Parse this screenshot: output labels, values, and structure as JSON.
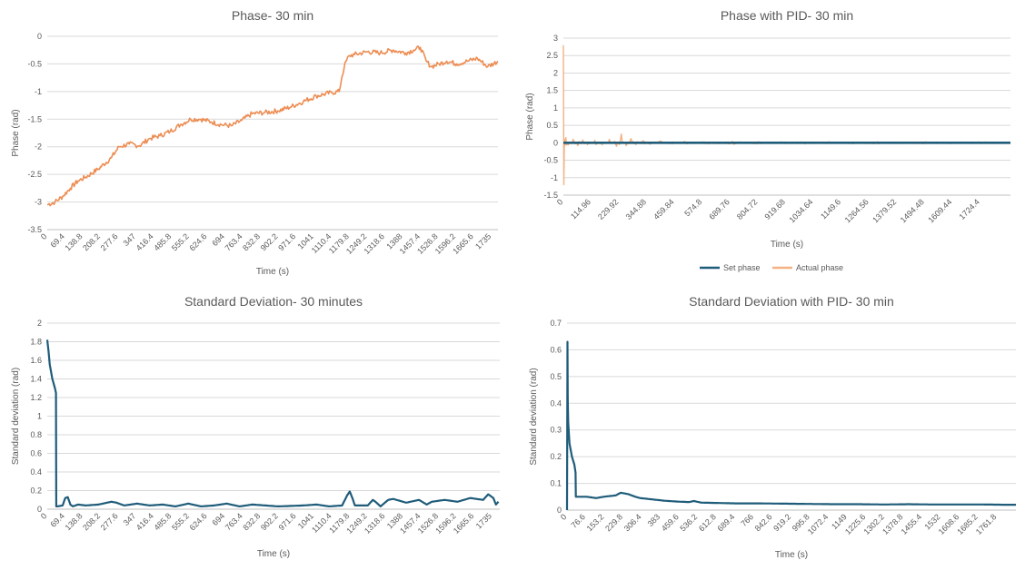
{
  "colors": {
    "orange": "#ED8D53",
    "orange_light": "#F4B183",
    "teal": "#1F5C7A",
    "grid": "#D9D9D9",
    "axis": "#BFBFBF",
    "text": "#595959"
  },
  "chart_data": [
    {
      "type": "line",
      "title": "Phase- 30 min",
      "xlabel": "Time (s)",
      "ylabel": "Phase (rad)",
      "ylim": [
        -3.5,
        0
      ],
      "yticks": [
        "0",
        "-0.5",
        "-1",
        "-1.5",
        "-2",
        "-2.5",
        "-3",
        "-3.5"
      ],
      "xticks": [
        "0",
        "69.4",
        "138.8",
        "208.2",
        "277.6",
        "347",
        "416.4",
        "485.8",
        "555.2",
        "624.6",
        "694",
        "763.4",
        "832.8",
        "902.2",
        "971.6",
        "1041",
        "1110.4",
        "1179.8",
        "1249.2",
        "1318.6",
        "1388",
        "1457.4",
        "1526.8",
        "1596.2",
        "1665.6",
        "1735"
      ],
      "grid": true,
      "series": [
        {
          "color": "#ED8D53",
          "x": [
            0,
            30,
            60,
            90,
            120,
            150,
            200,
            250,
            280,
            320,
            360,
            400,
            440,
            480,
            520,
            560,
            600,
            640,
            680,
            720,
            760,
            800,
            850,
            900,
            950,
            1000,
            1050,
            1080,
            1110,
            1140,
            1150,
            1160,
            1170,
            1180,
            1200,
            1250,
            1300,
            1350,
            1400,
            1430,
            1457,
            1480,
            1500,
            1530,
            1560,
            1600,
            1640,
            1680,
            1720,
            1760
          ],
          "y": [
            -3.05,
            -3.0,
            -2.9,
            -2.75,
            -2.62,
            -2.55,
            -2.4,
            -2.2,
            -2.0,
            -1.95,
            -1.98,
            -1.85,
            -1.8,
            -1.72,
            -1.6,
            -1.5,
            -1.5,
            -1.55,
            -1.6,
            -1.62,
            -1.52,
            -1.4,
            -1.38,
            -1.35,
            -1.28,
            -1.18,
            -1.08,
            -1.05,
            -1.02,
            -1.0,
            -0.75,
            -0.55,
            -0.42,
            -0.35,
            -0.33,
            -0.28,
            -0.3,
            -0.25,
            -0.3,
            -0.25,
            -0.2,
            -0.45,
            -0.55,
            -0.5,
            -0.45,
            -0.5,
            -0.45,
            -0.4,
            -0.55,
            -0.45
          ]
        }
      ]
    },
    {
      "type": "line",
      "title": "Phase with PID- 30 min",
      "xlabel": "Time (s)",
      "ylabel": "Phase (rad)",
      "ylim": [
        -1.5,
        3
      ],
      "yticks": [
        "3",
        "2.5",
        "2",
        "1.5",
        "1",
        "0.5",
        "0",
        "-0.5",
        "-1",
        "-1.5"
      ],
      "xticks": [
        "0",
        "114.96",
        "229.92",
        "344.88",
        "459.84",
        "574.8",
        "689.76",
        "804.72",
        "919.68",
        "1034.64",
        "1149.6",
        "1264.56",
        "1379.52",
        "1494.48",
        "1609.44",
        "1724.4"
      ],
      "grid": true,
      "legend": "bottom",
      "series": [
        {
          "name": "Set phase",
          "color": "#1F5C7A",
          "x": [
            0,
            1850
          ],
          "y": [
            0,
            0
          ]
        },
        {
          "name": "Actual phase",
          "color": "#F4B183",
          "x": [
            0,
            2,
            4,
            6,
            10,
            20,
            40,
            60,
            80,
            100,
            130,
            160,
            190,
            220,
            240,
            260,
            280,
            300,
            330,
            360,
            400,
            450,
            500,
            600,
            700,
            800,
            900,
            1000,
            1100,
            1200,
            1300,
            1400,
            1500,
            1600,
            1700,
            1850
          ],
          "y": [
            2.8,
            -1.2,
            0.1,
            -0.08,
            0.15,
            -0.06,
            0.1,
            -0.08,
            0.08,
            -0.05,
            0.07,
            -0.06,
            0.1,
            -0.1,
            0.25,
            -0.08,
            0.12,
            -0.05,
            0.06,
            -0.04,
            0.05,
            -0.03,
            0.04,
            -0.03,
            0.04,
            -0.03,
            0.03,
            -0.03,
            0.03,
            -0.02,
            0.03,
            -0.02,
            0.03,
            -0.02,
            0.02,
            0.0
          ]
        }
      ]
    },
    {
      "type": "line",
      "title": "Standard Deviation- 30 minutes",
      "xlabel": "Time (s)",
      "ylabel": "Standard deviation (rad)",
      "ylim": [
        0,
        2
      ],
      "yticks": [
        "2",
        "1.8",
        "1.6",
        "1.4",
        "1.2",
        "1",
        "0.8",
        "0.6",
        "0.4",
        "0.2",
        "0"
      ],
      "xticks": [
        "0",
        "69.4",
        "138.8",
        "208.2",
        "277.6",
        "347",
        "416.4",
        "485.8",
        "555.2",
        "624.6",
        "694",
        "763.4",
        "832.8",
        "902.2",
        "971.6",
        "1041",
        "1110.4",
        "1179.8",
        "1249.2",
        "1318.6",
        "1388",
        "1457.4",
        "1526.8",
        "1596.2",
        "1665.6",
        "1735"
      ],
      "grid": true,
      "series": [
        {
          "color": "#1F5C7A",
          "x": [
            0,
            5,
            10,
            20,
            30,
            34,
            35,
            40,
            60,
            70,
            80,
            90,
            100,
            120,
            150,
            200,
            250,
            270,
            300,
            350,
            400,
            450,
            500,
            550,
            600,
            650,
            700,
            750,
            800,
            900,
            1000,
            1050,
            1100,
            1150,
            1170,
            1180,
            1190,
            1200,
            1250,
            1270,
            1280,
            1300,
            1330,
            1350,
            1400,
            1450,
            1480,
            1500,
            1550,
            1600,
            1650,
            1700,
            1720,
            1740,
            1750,
            1760
          ],
          "y": [
            1.82,
            1.7,
            1.55,
            1.4,
            1.3,
            1.25,
            0.03,
            0.03,
            0.04,
            0.12,
            0.13,
            0.05,
            0.03,
            0.05,
            0.04,
            0.05,
            0.08,
            0.07,
            0.04,
            0.06,
            0.04,
            0.05,
            0.03,
            0.06,
            0.03,
            0.04,
            0.06,
            0.03,
            0.05,
            0.03,
            0.04,
            0.05,
            0.03,
            0.04,
            0.15,
            0.19,
            0.12,
            0.04,
            0.04,
            0.1,
            0.08,
            0.03,
            0.1,
            0.11,
            0.07,
            0.1,
            0.05,
            0.08,
            0.1,
            0.08,
            0.12,
            0.1,
            0.16,
            0.12,
            0.05,
            0.08
          ]
        }
      ]
    },
    {
      "type": "line",
      "title": "Standard Deviation with PID- 30 min",
      "xlabel": "Time (s)",
      "ylabel": "Standard deviation (rad)",
      "ylim": [
        0,
        0.7
      ],
      "yticks": [
        "0.7",
        "0.6",
        "0.5",
        "0.4",
        "0.3",
        "0.2",
        "0.1",
        "0"
      ],
      "xticks": [
        "0",
        "76.6",
        "153.2",
        "229.8",
        "306.4",
        "383",
        "459.6",
        "536.2",
        "612.8",
        "689.4",
        "766",
        "842.6",
        "919.2",
        "995.8",
        "1072.4",
        "1149",
        "1225.6",
        "1302.2",
        "1378.8",
        "1455.4",
        "1532",
        "1608.6",
        "1685.2",
        "1761.8"
      ],
      "grid": true,
      "series": [
        {
          "color": "#1F5C7A",
          "x": [
            0,
            2,
            3,
            5,
            10,
            20,
            30,
            35,
            36,
            50,
            80,
            120,
            150,
            200,
            220,
            250,
            280,
            300,
            350,
            400,
            450,
            500,
            520,
            550,
            600,
            700,
            800,
            900,
            1000,
            1100,
            1200,
            1300,
            1400,
            1500,
            1600,
            1700,
            1800,
            1840
          ],
          "y": [
            0.0,
            0.63,
            0.42,
            0.33,
            0.25,
            0.2,
            0.17,
            0.14,
            0.05,
            0.05,
            0.05,
            0.045,
            0.05,
            0.055,
            0.065,
            0.06,
            0.05,
            0.045,
            0.04,
            0.035,
            0.032,
            0.03,
            0.034,
            0.028,
            0.027,
            0.025,
            0.025,
            0.024,
            0.023,
            0.022,
            0.022,
            0.021,
            0.022,
            0.021,
            0.021,
            0.021,
            0.02,
            0.02
          ]
        }
      ]
    }
  ]
}
